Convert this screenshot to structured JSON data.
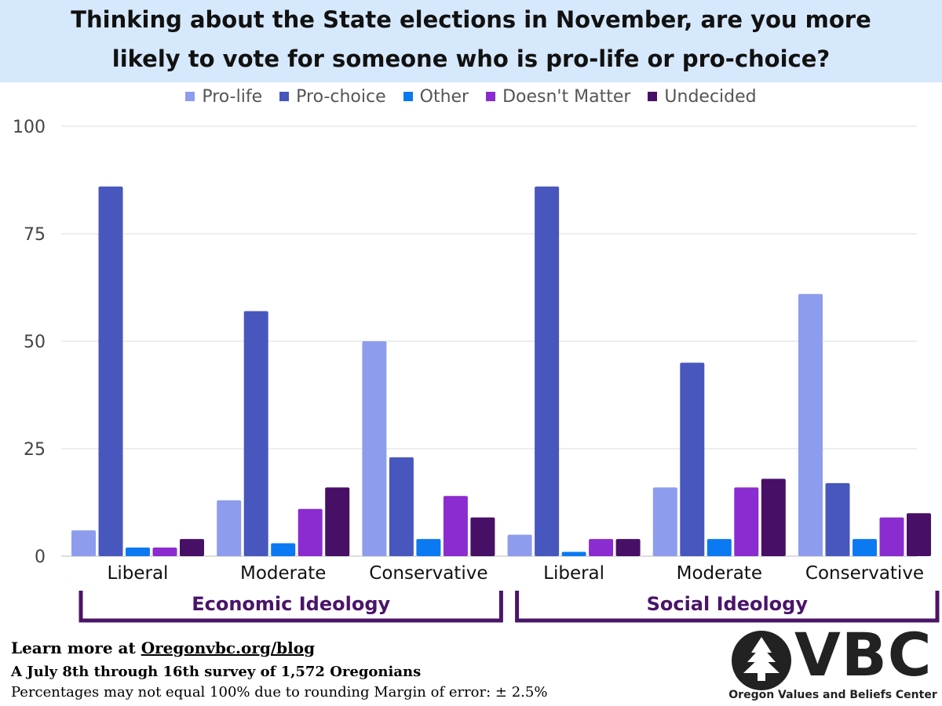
{
  "chart_data": {
    "type": "bar",
    "title_lines": [
      "Thinking about the State elections in November, are you more",
      "likely to vote for someone who is pro-life or pro-choice?"
    ],
    "categories": [
      "Liberal",
      "Moderate",
      "Conservative",
      "Liberal",
      "Moderate",
      "Conservative"
    ],
    "groups": [
      {
        "label": "Economic Ideology",
        "categories": [
          0,
          1,
          2
        ]
      },
      {
        "label": "Social Ideology",
        "categories": [
          3,
          4,
          5
        ]
      }
    ],
    "series": [
      {
        "name": "Pro-life",
        "color": "#8d9ced",
        "values": [
          6,
          13,
          50,
          5,
          16,
          61
        ]
      },
      {
        "name": "Pro-choice",
        "color": "#4757bd",
        "values": [
          86,
          57,
          23,
          86,
          45,
          17
        ]
      },
      {
        "name": "Other",
        "color": "#0b79f1",
        "values": [
          2,
          3,
          4,
          1,
          4,
          4
        ]
      },
      {
        "name": "Doesn't Matter",
        "color": "#8a2ccf",
        "values": [
          2,
          11,
          14,
          4,
          16,
          9
        ]
      },
      {
        "name": "Undecided",
        "color": "#470f66",
        "values": [
          4,
          16,
          9,
          4,
          18,
          10
        ]
      }
    ],
    "ylim": [
      0,
      100
    ],
    "yticks": [
      0,
      25,
      50,
      75,
      100
    ],
    "grid": true,
    "legend": "top",
    "group_bracket_color": "#4a1469"
  },
  "footer": {
    "learn_more_prefix": "Learn more at ",
    "learn_more_link": "Oregonvbc.org/blog",
    "survey": "A July 8th through 16th survey of 1,572 Oregonians",
    "note": "Percentages may not equal  100% due to rounding   Margin of error: ± 2.5%"
  },
  "logo": {
    "letters": "VBC",
    "tagline": "Oregon Values and Beliefs Center",
    "icon": "tree-icon"
  }
}
